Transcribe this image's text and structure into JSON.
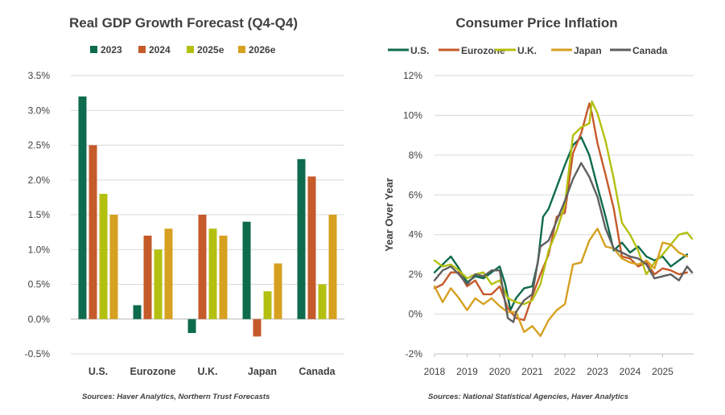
{
  "chart_data": [
    {
      "type": "bar",
      "title": "Real GDP Growth Forecast (Q4-Q4)",
      "categories": [
        "U.S.",
        "Eurozone",
        "U.K.",
        "Japan",
        "Canada"
      ],
      "series": [
        {
          "name": "2023",
          "color": "#0e6b4d",
          "values": [
            3.2,
            0.2,
            -0.2,
            1.4,
            2.3
          ]
        },
        {
          "name": "2024",
          "color": "#c55a2b",
          "values": [
            2.5,
            1.2,
            1.5,
            -0.25,
            2.05
          ]
        },
        {
          "name": "2025e",
          "color": "#b4c010",
          "values": [
            1.8,
            1.0,
            1.3,
            0.4,
            0.5
          ]
        },
        {
          "name": "2026e",
          "color": "#d6a020",
          "values": [
            1.5,
            1.3,
            1.2,
            0.8,
            1.5
          ]
        }
      ],
      "ylim": [
        -0.5,
        3.5
      ],
      "yticks": [
        "-0.5%",
        "0.0%",
        "0.5%",
        "1.0%",
        "1.5%",
        "2.0%",
        "2.5%",
        "3.0%",
        "3.5%"
      ],
      "xlabel": "",
      "ylabel": "",
      "legend": "top",
      "source": "Sources: Haver Analytics, Northern Trust Forecasts"
    },
    {
      "type": "line",
      "title": "Consumer Price Inflation",
      "ylabel": "Year Over Year",
      "xlabel": "",
      "xlim": [
        2018.0,
        2025.95
      ],
      "ylim": [
        -2,
        12
      ],
      "yticks": [
        "-2%",
        "0%",
        "2%",
        "4%",
        "6%",
        "8%",
        "10%",
        "12%"
      ],
      "xticks": [
        "2018",
        "2019",
        "2020",
        "2021",
        "2022",
        "2023",
        "2024",
        "2025"
      ],
      "legend": "top",
      "source": "Sources: National Statistical Agencies, Haver Analytics",
      "series": [
        {
          "name": "U.S.",
          "color": "#0e6b4d",
          "x": [
            2018.0,
            2018.25,
            2018.5,
            2018.75,
            2019.0,
            2019.25,
            2019.5,
            2019.75,
            2020.0,
            2020.17,
            2020.33,
            2020.5,
            2020.75,
            2021.0,
            2021.17,
            2021.33,
            2021.5,
            2021.75,
            2022.0,
            2022.25,
            2022.5,
            2022.75,
            2023.0,
            2023.25,
            2023.5,
            2023.75,
            2024.0,
            2024.25,
            2024.5,
            2024.75,
            2025.0,
            2025.25,
            2025.5,
            2025.75
          ],
          "values": [
            2.1,
            2.5,
            2.9,
            2.3,
            1.6,
            1.9,
            1.8,
            2.1,
            2.4,
            1.5,
            0.2,
            0.8,
            1.3,
            1.4,
            2.6,
            4.9,
            5.3,
            6.4,
            7.5,
            8.5,
            8.9,
            8.0,
            6.4,
            4.9,
            3.2,
            3.6,
            3.1,
            3.4,
            2.9,
            2.7,
            2.9,
            2.4,
            2.7,
            3.0
          ]
        },
        {
          "name": "Eurozone",
          "color": "#c55a2b",
          "x": [
            2018.0,
            2018.25,
            2018.5,
            2018.75,
            2019.0,
            2019.25,
            2019.5,
            2019.75,
            2020.0,
            2020.25,
            2020.5,
            2020.75,
            2021.0,
            2021.25,
            2021.5,
            2021.75,
            2022.0,
            2022.25,
            2022.5,
            2022.75,
            2022.83,
            2023.0,
            2023.25,
            2023.5,
            2023.75,
            2024.0,
            2024.25,
            2024.5,
            2024.75,
            2025.0,
            2025.25,
            2025.5,
            2025.75
          ],
          "values": [
            1.3,
            1.5,
            2.1,
            2.1,
            1.4,
            1.7,
            1.0,
            1.0,
            1.4,
            0.3,
            -0.2,
            -0.3,
            0.9,
            2.0,
            3.0,
            4.9,
            5.1,
            8.1,
            9.1,
            10.6,
            10.1,
            8.6,
            7.0,
            5.3,
            2.9,
            2.8,
            2.4,
            2.6,
            2.0,
            2.3,
            2.2,
            2.0,
            2.1
          ]
        },
        {
          "name": "U.K.",
          "color": "#b4c010",
          "x": [
            2018.0,
            2018.25,
            2018.5,
            2018.75,
            2019.0,
            2019.25,
            2019.5,
            2019.75,
            2020.0,
            2020.25,
            2020.5,
            2020.75,
            2021.0,
            2021.25,
            2021.5,
            2021.75,
            2022.0,
            2022.25,
            2022.5,
            2022.75,
            2022.83,
            2023.0,
            2023.25,
            2023.5,
            2023.75,
            2024.0,
            2024.25,
            2024.5,
            2024.75,
            2025.0,
            2025.25,
            2025.5,
            2025.75,
            2025.9
          ],
          "values": [
            2.7,
            2.4,
            2.5,
            2.2,
            1.8,
            2.0,
            2.1,
            1.5,
            1.7,
            0.8,
            0.6,
            0.5,
            0.7,
            1.5,
            3.2,
            4.2,
            5.5,
            9.0,
            9.4,
            9.6,
            10.7,
            10.1,
            8.7,
            6.8,
            4.6,
            4.0,
            3.2,
            2.0,
            2.6,
            3.0,
            3.5,
            4.0,
            4.1,
            3.8
          ]
        },
        {
          "name": "Japan",
          "color": "#d6a020",
          "x": [
            2018.0,
            2018.25,
            2018.5,
            2018.75,
            2019.0,
            2019.25,
            2019.5,
            2019.75,
            2020.0,
            2020.25,
            2020.5,
            2020.75,
            2021.0,
            2021.25,
            2021.5,
            2021.75,
            2022.0,
            2022.25,
            2022.5,
            2022.75,
            2023.0,
            2023.25,
            2023.5,
            2023.75,
            2024.0,
            2024.25,
            2024.5,
            2024.75,
            2025.0,
            2025.25,
            2025.5,
            2025.75
          ],
          "values": [
            1.4,
            0.6,
            1.3,
            0.8,
            0.2,
            0.8,
            0.5,
            0.8,
            0.4,
            0.1,
            0.1,
            -0.9,
            -0.6,
            -1.1,
            -0.3,
            0.2,
            0.5,
            2.5,
            2.6,
            3.7,
            4.3,
            3.4,
            3.3,
            2.8,
            2.6,
            2.5,
            2.7,
            2.3,
            3.6,
            3.5,
            3.1,
            2.9
          ]
        },
        {
          "name": "Canada",
          "color": "#5f5f5f",
          "x": [
            2018.0,
            2018.25,
            2018.5,
            2018.75,
            2019.0,
            2019.25,
            2019.5,
            2019.75,
            2020.0,
            2020.25,
            2020.42,
            2020.5,
            2020.75,
            2021.0,
            2021.25,
            2021.5,
            2021.75,
            2022.0,
            2022.25,
            2022.5,
            2022.75,
            2023.0,
            2023.25,
            2023.5,
            2023.75,
            2024.0,
            2024.25,
            2024.5,
            2024.75,
            2025.0,
            2025.25,
            2025.5,
            2025.75,
            2025.9
          ],
          "values": [
            1.7,
            2.2,
            2.4,
            2.0,
            1.5,
            2.0,
            1.9,
            2.2,
            2.2,
            -0.2,
            -0.4,
            0.1,
            0.7,
            1.0,
            3.4,
            3.7,
            4.7,
            5.7,
            6.8,
            7.6,
            6.9,
            5.9,
            4.3,
            3.3,
            3.1,
            2.9,
            2.8,
            2.5,
            1.8,
            1.9,
            2.0,
            1.7,
            2.4,
            2.1
          ]
        }
      ]
    }
  ]
}
